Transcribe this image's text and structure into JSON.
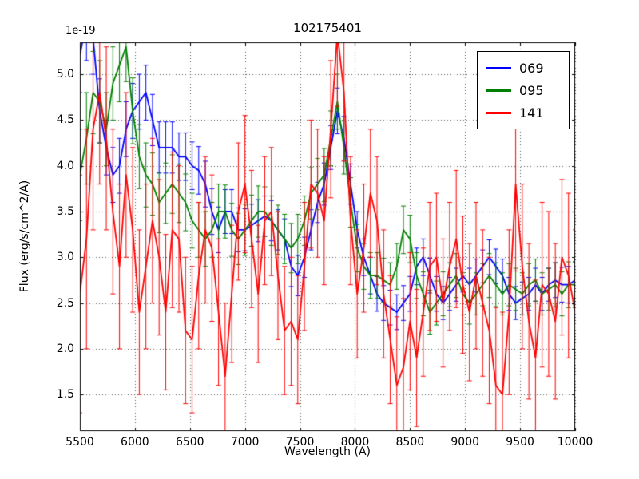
{
  "figure": {
    "title": "102175401",
    "xlabel": "Wavelength (A)",
    "ylabel": "Flux (erg/s/cm^2/A)",
    "offset_label": "1e-19"
  },
  "chart_data": {
    "type": "line",
    "title": "102175401",
    "xlabel": "Wavelength (A)",
    "ylabel": "Flux (erg/s/cm^2/A)",
    "y_offset_factor": "1e-19",
    "xlim": [
      5500,
      10000
    ],
    "ylim": [
      1.1,
      5.35
    ],
    "xticks": [
      5500,
      6000,
      6500,
      7000,
      7500,
      8000,
      8500,
      9000,
      9500,
      10000
    ],
    "yticks": [
      1.5,
      2.0,
      2.5,
      3.0,
      3.5,
      4.0,
      4.5,
      5.0
    ],
    "grid": true,
    "grid_style": "dotted",
    "legend_position": "upper right",
    "error_bars": true,
    "x": [
      5500,
      5560,
      5620,
      5680,
      5740,
      5800,
      5860,
      5920,
      5980,
      6040,
      6100,
      6160,
      6220,
      6280,
      6340,
      6400,
      6460,
      6520,
      6580,
      6640,
      6700,
      6760,
      6820,
      6880,
      6940,
      7000,
      7060,
      7120,
      7180,
      7240,
      7300,
      7360,
      7420,
      7480,
      7540,
      7600,
      7660,
      7720,
      7780,
      7840,
      7900,
      7960,
      8020,
      8080,
      8140,
      8200,
      8260,
      8320,
      8380,
      8440,
      8500,
      8560,
      8620,
      8680,
      8740,
      8800,
      8860,
      8920,
      8980,
      9040,
      9100,
      9160,
      9220,
      9280,
      9340,
      9400,
      9460,
      9520,
      9580,
      9640,
      9700,
      9760,
      9820,
      9880,
      9940,
      10000
    ],
    "series": [
      {
        "name": "069",
        "color": "#0000ff",
        "values": [
          5.2,
          5.6,
          5.4,
          4.6,
          4.2,
          3.9,
          4.0,
          4.4,
          4.6,
          4.7,
          4.8,
          4.5,
          4.2,
          4.2,
          4.2,
          4.1,
          4.1,
          4.0,
          3.95,
          3.8,
          3.5,
          3.3,
          3.5,
          3.5,
          3.3,
          3.3,
          3.35,
          3.4,
          3.45,
          3.4,
          3.3,
          3.2,
          2.9,
          2.8,
          3.0,
          3.3,
          3.6,
          3.8,
          4.2,
          4.6,
          4.3,
          3.8,
          3.3,
          3.0,
          2.8,
          2.6,
          2.5,
          2.45,
          2.4,
          2.5,
          2.6,
          2.9,
          3.0,
          2.8,
          2.6,
          2.5,
          2.6,
          2.7,
          2.8,
          2.7,
          2.8,
          2.9,
          3.0,
          2.9,
          2.8,
          2.6,
          2.5,
          2.55,
          2.6,
          2.7,
          2.6,
          2.7,
          2.75,
          2.7,
          2.7,
          2.75
        ],
        "errors": [
          0.4,
          0.45,
          0.4,
          0.35,
          0.3,
          0.3,
          0.3,
          0.3,
          0.3,
          0.3,
          0.3,
          0.28,
          0.28,
          0.28,
          0.28,
          0.26,
          0.26,
          0.26,
          0.26,
          0.25,
          0.25,
          0.25,
          0.24,
          0.24,
          0.24,
          0.23,
          0.23,
          0.23,
          0.22,
          0.22,
          0.22,
          0.22,
          0.22,
          0.22,
          0.22,
          0.22,
          0.22,
          0.23,
          0.24,
          0.25,
          0.24,
          0.22,
          0.2,
          0.2,
          0.2,
          0.19,
          0.19,
          0.19,
          0.19,
          0.19,
          0.19,
          0.2,
          0.2,
          0.19,
          0.19,
          0.18,
          0.18,
          0.18,
          0.18,
          0.18,
          0.18,
          0.18,
          0.19,
          0.19,
          0.18,
          0.18,
          0.18,
          0.18,
          0.18,
          0.18,
          0.18,
          0.18,
          0.19,
          0.19,
          0.2,
          0.2
        ]
      },
      {
        "name": "095",
        "color": "#008000",
        "values": [
          3.9,
          4.3,
          4.8,
          4.7,
          4.4,
          4.9,
          5.1,
          5.3,
          4.6,
          4.1,
          3.9,
          3.8,
          3.6,
          3.7,
          3.8,
          3.7,
          3.6,
          3.4,
          3.3,
          3.2,
          3.3,
          3.5,
          3.5,
          3.3,
          3.2,
          3.3,
          3.4,
          3.5,
          3.5,
          3.4,
          3.3,
          3.2,
          3.1,
          3.2,
          3.4,
          3.7,
          3.8,
          3.9,
          4.3,
          4.7,
          4.2,
          3.6,
          3.1,
          2.9,
          2.8,
          2.8,
          2.75,
          2.7,
          2.9,
          3.3,
          3.2,
          2.8,
          2.6,
          2.4,
          2.5,
          2.6,
          2.7,
          2.8,
          2.6,
          2.5,
          2.6,
          2.7,
          2.8,
          2.7,
          2.6,
          2.7,
          2.65,
          2.6,
          2.7,
          2.75,
          2.6,
          2.65,
          2.7,
          2.6,
          2.7,
          2.7
        ],
        "errors": [
          0.5,
          0.5,
          0.45,
          0.45,
          0.4,
          0.4,
          0.4,
          0.38,
          0.36,
          0.35,
          0.35,
          0.34,
          0.33,
          0.33,
          0.32,
          0.32,
          0.31,
          0.3,
          0.3,
          0.3,
          0.3,
          0.3,
          0.29,
          0.29,
          0.28,
          0.28,
          0.28,
          0.28,
          0.27,
          0.27,
          0.27,
          0.27,
          0.27,
          0.27,
          0.27,
          0.28,
          0.28,
          0.29,
          0.3,
          0.3,
          0.29,
          0.27,
          0.26,
          0.25,
          0.25,
          0.25,
          0.24,
          0.24,
          0.25,
          0.26,
          0.26,
          0.25,
          0.24,
          0.24,
          0.24,
          0.24,
          0.24,
          0.24,
          0.23,
          0.23,
          0.23,
          0.23,
          0.24,
          0.24,
          0.23,
          0.23,
          0.23,
          0.23,
          0.23,
          0.23,
          0.23,
          0.23,
          0.24,
          0.24,
          0.25,
          0.25
        ]
      },
      {
        "name": "141",
        "color": "#ff0000",
        "values": [
          2.6,
          3.2,
          4.4,
          4.8,
          4.3,
          3.5,
          2.9,
          3.9,
          3.3,
          2.4,
          2.9,
          3.4,
          3.0,
          2.4,
          3.3,
          3.2,
          2.2,
          2.1,
          2.8,
          3.3,
          3.1,
          2.4,
          1.7,
          2.6,
          3.5,
          3.8,
          3.2,
          2.6,
          3.4,
          3.5,
          2.8,
          2.2,
          2.3,
          2.1,
          2.9,
          3.8,
          3.7,
          3.4,
          4.4,
          5.45,
          4.8,
          3.4,
          2.6,
          3.1,
          3.7,
          3.4,
          2.6,
          2.1,
          1.6,
          1.8,
          2.3,
          1.9,
          2.4,
          2.9,
          3.0,
          2.5,
          2.9,
          3.2,
          2.7,
          2.4,
          2.8,
          2.5,
          2.2,
          1.6,
          1.5,
          2.4,
          3.8,
          2.9,
          2.3,
          1.9,
          2.7,
          2.6,
          2.3,
          3.0,
          2.8,
          2.4
        ],
        "errors": [
          1.3,
          1.2,
          1.1,
          1.0,
          1.0,
          0.9,
          0.9,
          0.9,
          0.9,
          0.9,
          0.9,
          0.9,
          0.85,
          0.85,
          0.85,
          0.8,
          0.8,
          0.8,
          0.8,
          0.8,
          0.8,
          0.8,
          0.8,
          0.75,
          0.75,
          0.75,
          0.75,
          0.75,
          0.7,
          0.7,
          0.7,
          0.7,
          0.7,
          0.7,
          0.7,
          0.7,
          0.7,
          0.7,
          0.75,
          0.8,
          0.75,
          0.7,
          0.7,
          0.7,
          0.7,
          0.7,
          0.7,
          0.7,
          0.75,
          0.75,
          0.75,
          0.75,
          0.7,
          0.7,
          0.7,
          0.7,
          0.7,
          0.75,
          0.75,
          0.75,
          0.8,
          0.8,
          0.8,
          0.85,
          0.9,
          0.9,
          0.95,
          0.9,
          0.85,
          0.85,
          0.9,
          0.9,
          0.85,
          0.85,
          0.9,
          0.9
        ]
      }
    ]
  }
}
